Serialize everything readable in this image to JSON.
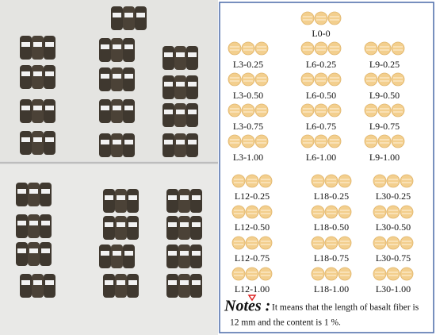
{
  "legend": {
    "top": "L0-0",
    "upper_rows": [
      [
        "L3-0.25",
        "L6-0.25",
        "L9-0.25"
      ],
      [
        "L3-0.50",
        "L6-0.50",
        "L9-0.50"
      ],
      [
        "L3-0.75",
        "L6-0.75",
        "L9-0.75"
      ],
      [
        "L3-1.00",
        "L6-1.00",
        "L9-1.00"
      ]
    ],
    "lower_rows": [
      [
        "L12-0.25",
        "L18-0.25",
        "L30-0.25"
      ],
      [
        "L12-0.50",
        "L18-0.50",
        "L30-0.50"
      ],
      [
        "L12-0.75",
        "L18-0.75",
        "L30-0.75"
      ],
      [
        "L12-1.00",
        "L18-1.00",
        "L30-1.00"
      ]
    ]
  },
  "notes": {
    "heading": "Notes :",
    "lines": [
      "It means that the length of basalt fiber is",
      "12 mm and the content is 1 %."
    ]
  }
}
